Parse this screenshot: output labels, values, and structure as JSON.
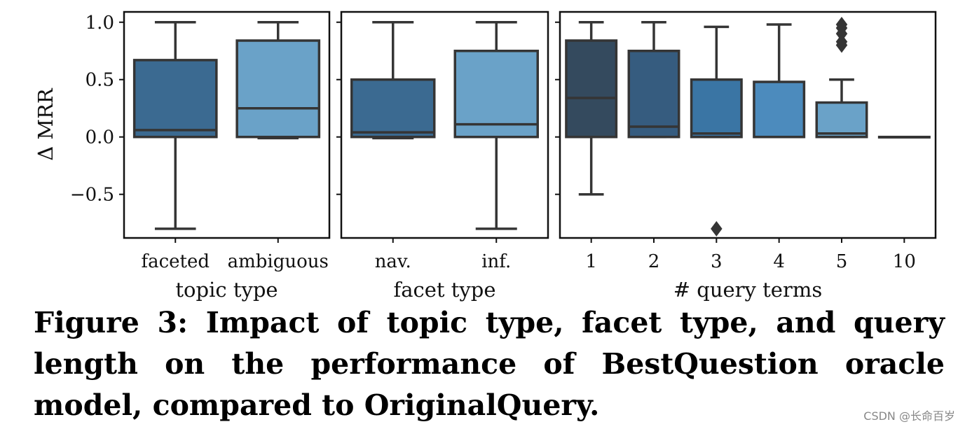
{
  "chart_data": [
    {
      "type": "boxplot",
      "ylabel": "Δ MRR",
      "xlabel": "topic type",
      "ylim": [
        -0.88,
        1.09
      ],
      "yticks": [
        1.0,
        0.5,
        0.0,
        -0.5
      ],
      "ytick_labels": [
        "1.0",
        "0.5",
        "0.0",
        "−0.5"
      ],
      "boxes": [
        {
          "category": "faceted",
          "color": "#3b6a91",
          "q1": 0.0,
          "median": 0.06,
          "q3": 0.67,
          "whisker_low": -0.8,
          "whisker_high": 1.0,
          "outliers": []
        },
        {
          "category": "ambiguous",
          "color": "#6aa2c8",
          "q1": 0.0,
          "median": 0.25,
          "q3": 0.84,
          "whisker_low": -0.01,
          "whisker_high": 1.0,
          "outliers": []
        }
      ]
    },
    {
      "type": "boxplot",
      "xlabel": "facet type",
      "ylim": [
        -0.88,
        1.09
      ],
      "boxes": [
        {
          "category": "nav.",
          "color": "#3b6a91",
          "q1": 0.0,
          "median": 0.04,
          "q3": 0.5,
          "whisker_low": -0.01,
          "whisker_high": 1.0,
          "outliers": []
        },
        {
          "category": "inf.",
          "color": "#6aa2c8",
          "q1": 0.0,
          "median": 0.11,
          "q3": 0.75,
          "whisker_low": -0.8,
          "whisker_high": 1.0,
          "outliers": []
        }
      ]
    },
    {
      "type": "boxplot",
      "xlabel": "# query terms",
      "ylim": [
        -0.88,
        1.09
      ],
      "boxes": [
        {
          "category": "1",
          "color": "#344a5e",
          "q1": 0.0,
          "median": 0.34,
          "q3": 0.84,
          "whisker_low": -0.5,
          "whisker_high": 1.0,
          "outliers": []
        },
        {
          "category": "2",
          "color": "#365c7f",
          "q1": 0.0,
          "median": 0.09,
          "q3": 0.75,
          "whisker_low": 0.0,
          "whisker_high": 1.0,
          "outliers": []
        },
        {
          "category": "3",
          "color": "#3a75a4",
          "q1": 0.0,
          "median": 0.03,
          "q3": 0.5,
          "whisker_low": 0.0,
          "whisker_high": 0.96,
          "outliers": [
            -0.8
          ]
        },
        {
          "category": "4",
          "color": "#4c8bbd",
          "q1": 0.0,
          "median": 0.0,
          "q3": 0.48,
          "whisker_low": 0.0,
          "whisker_high": 0.98,
          "outliers": []
        },
        {
          "category": "5",
          "color": "#6aa2c8",
          "q1": 0.0,
          "median": 0.03,
          "q3": 0.3,
          "whisker_low": 0.0,
          "whisker_high": 0.5,
          "outliers": [
            0.8,
            0.83,
            0.9,
            0.95,
            0.98
          ]
        },
        {
          "category": "10",
          "color": "#7fb0d4",
          "q1": 0.0,
          "median": 0.0,
          "q3": 0.0,
          "whisker_low": 0.0,
          "whisker_high": 0.0,
          "outliers": []
        }
      ]
    }
  ],
  "caption": "Figure 3: Impact of topic type, facet type, and query length on the performance of BestQuestion oracle model, compared to OriginalQuery.",
  "watermark": "CSDN @长命百岁"
}
